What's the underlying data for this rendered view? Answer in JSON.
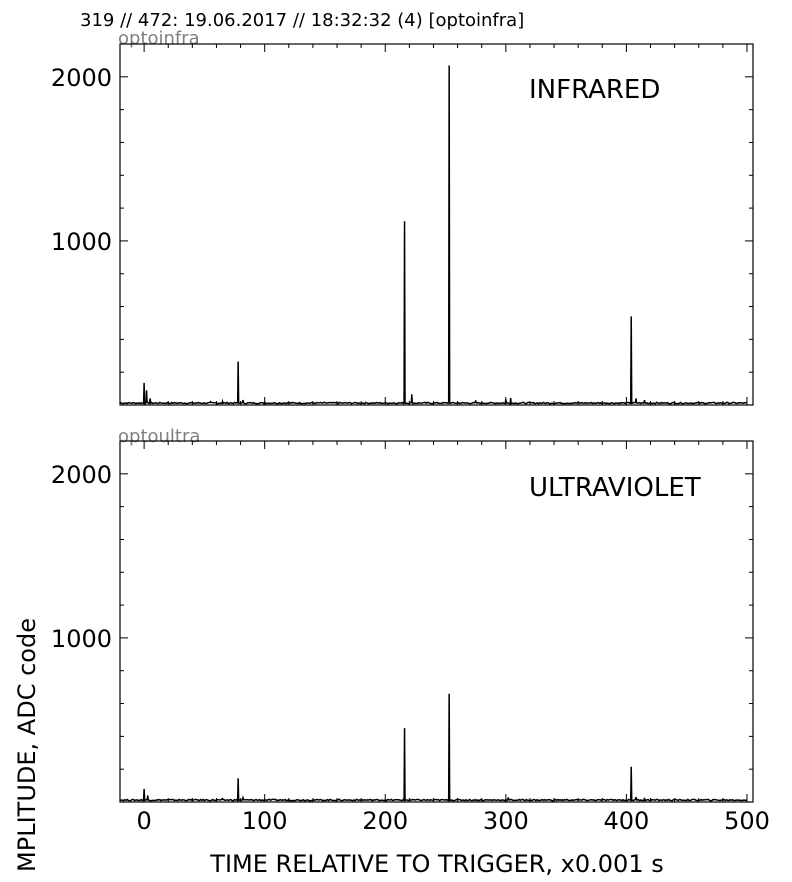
{
  "header": {
    "title": "319 // 472:   19.06.2017 // 18:32:32 (4)  [optoinfra]"
  },
  "axes": {
    "xlabel": "TIME RELATIVE TO TRIGGER,   x0.001 s",
    "ylabel": "MPLITUDE,  ADC code"
  },
  "chart_data": [
    {
      "type": "line",
      "name_label": "optoinfra",
      "panel_title": "INFRARED",
      "xlim": [
        -20,
        505
      ],
      "ylim": [
        0,
        2200
      ],
      "x_ticks": [
        0,
        100,
        200,
        300,
        400,
        500
      ],
      "y_ticks": [
        1000,
        2000
      ],
      "baseline": 12,
      "spikes": [
        {
          "x": 0,
          "y": 135
        },
        {
          "x": 2,
          "y": 90
        },
        {
          "x": 5,
          "y": 40
        },
        {
          "x": 55,
          "y": 20
        },
        {
          "x": 65,
          "y": 22
        },
        {
          "x": 78,
          "y": 265
        },
        {
          "x": 82,
          "y": 30
        },
        {
          "x": 100,
          "y": 18
        },
        {
          "x": 216,
          "y": 1120
        },
        {
          "x": 222,
          "y": 65
        },
        {
          "x": 253,
          "y": 2070
        },
        {
          "x": 275,
          "y": 28
        },
        {
          "x": 300,
          "y": 35
        },
        {
          "x": 304,
          "y": 42
        },
        {
          "x": 404,
          "y": 540
        },
        {
          "x": 408,
          "y": 40
        },
        {
          "x": 415,
          "y": 30
        }
      ]
    },
    {
      "type": "line",
      "name_label": "optoultra",
      "panel_title": "ULTRAVIOLET",
      "xlim": [
        -20,
        505
      ],
      "ylim": [
        0,
        2200
      ],
      "x_ticks": [
        0,
        100,
        200,
        300,
        400,
        500
      ],
      "y_ticks": [
        1000,
        2000
      ],
      "baseline": 12,
      "spikes": [
        {
          "x": 0,
          "y": 80
        },
        {
          "x": 3,
          "y": 40
        },
        {
          "x": 65,
          "y": 20
        },
        {
          "x": 78,
          "y": 145
        },
        {
          "x": 82,
          "y": 25
        },
        {
          "x": 216,
          "y": 450
        },
        {
          "x": 253,
          "y": 660
        },
        {
          "x": 302,
          "y": 28
        },
        {
          "x": 404,
          "y": 215
        },
        {
          "x": 408,
          "y": 30
        },
        {
          "x": 415,
          "y": 25
        }
      ]
    }
  ]
}
